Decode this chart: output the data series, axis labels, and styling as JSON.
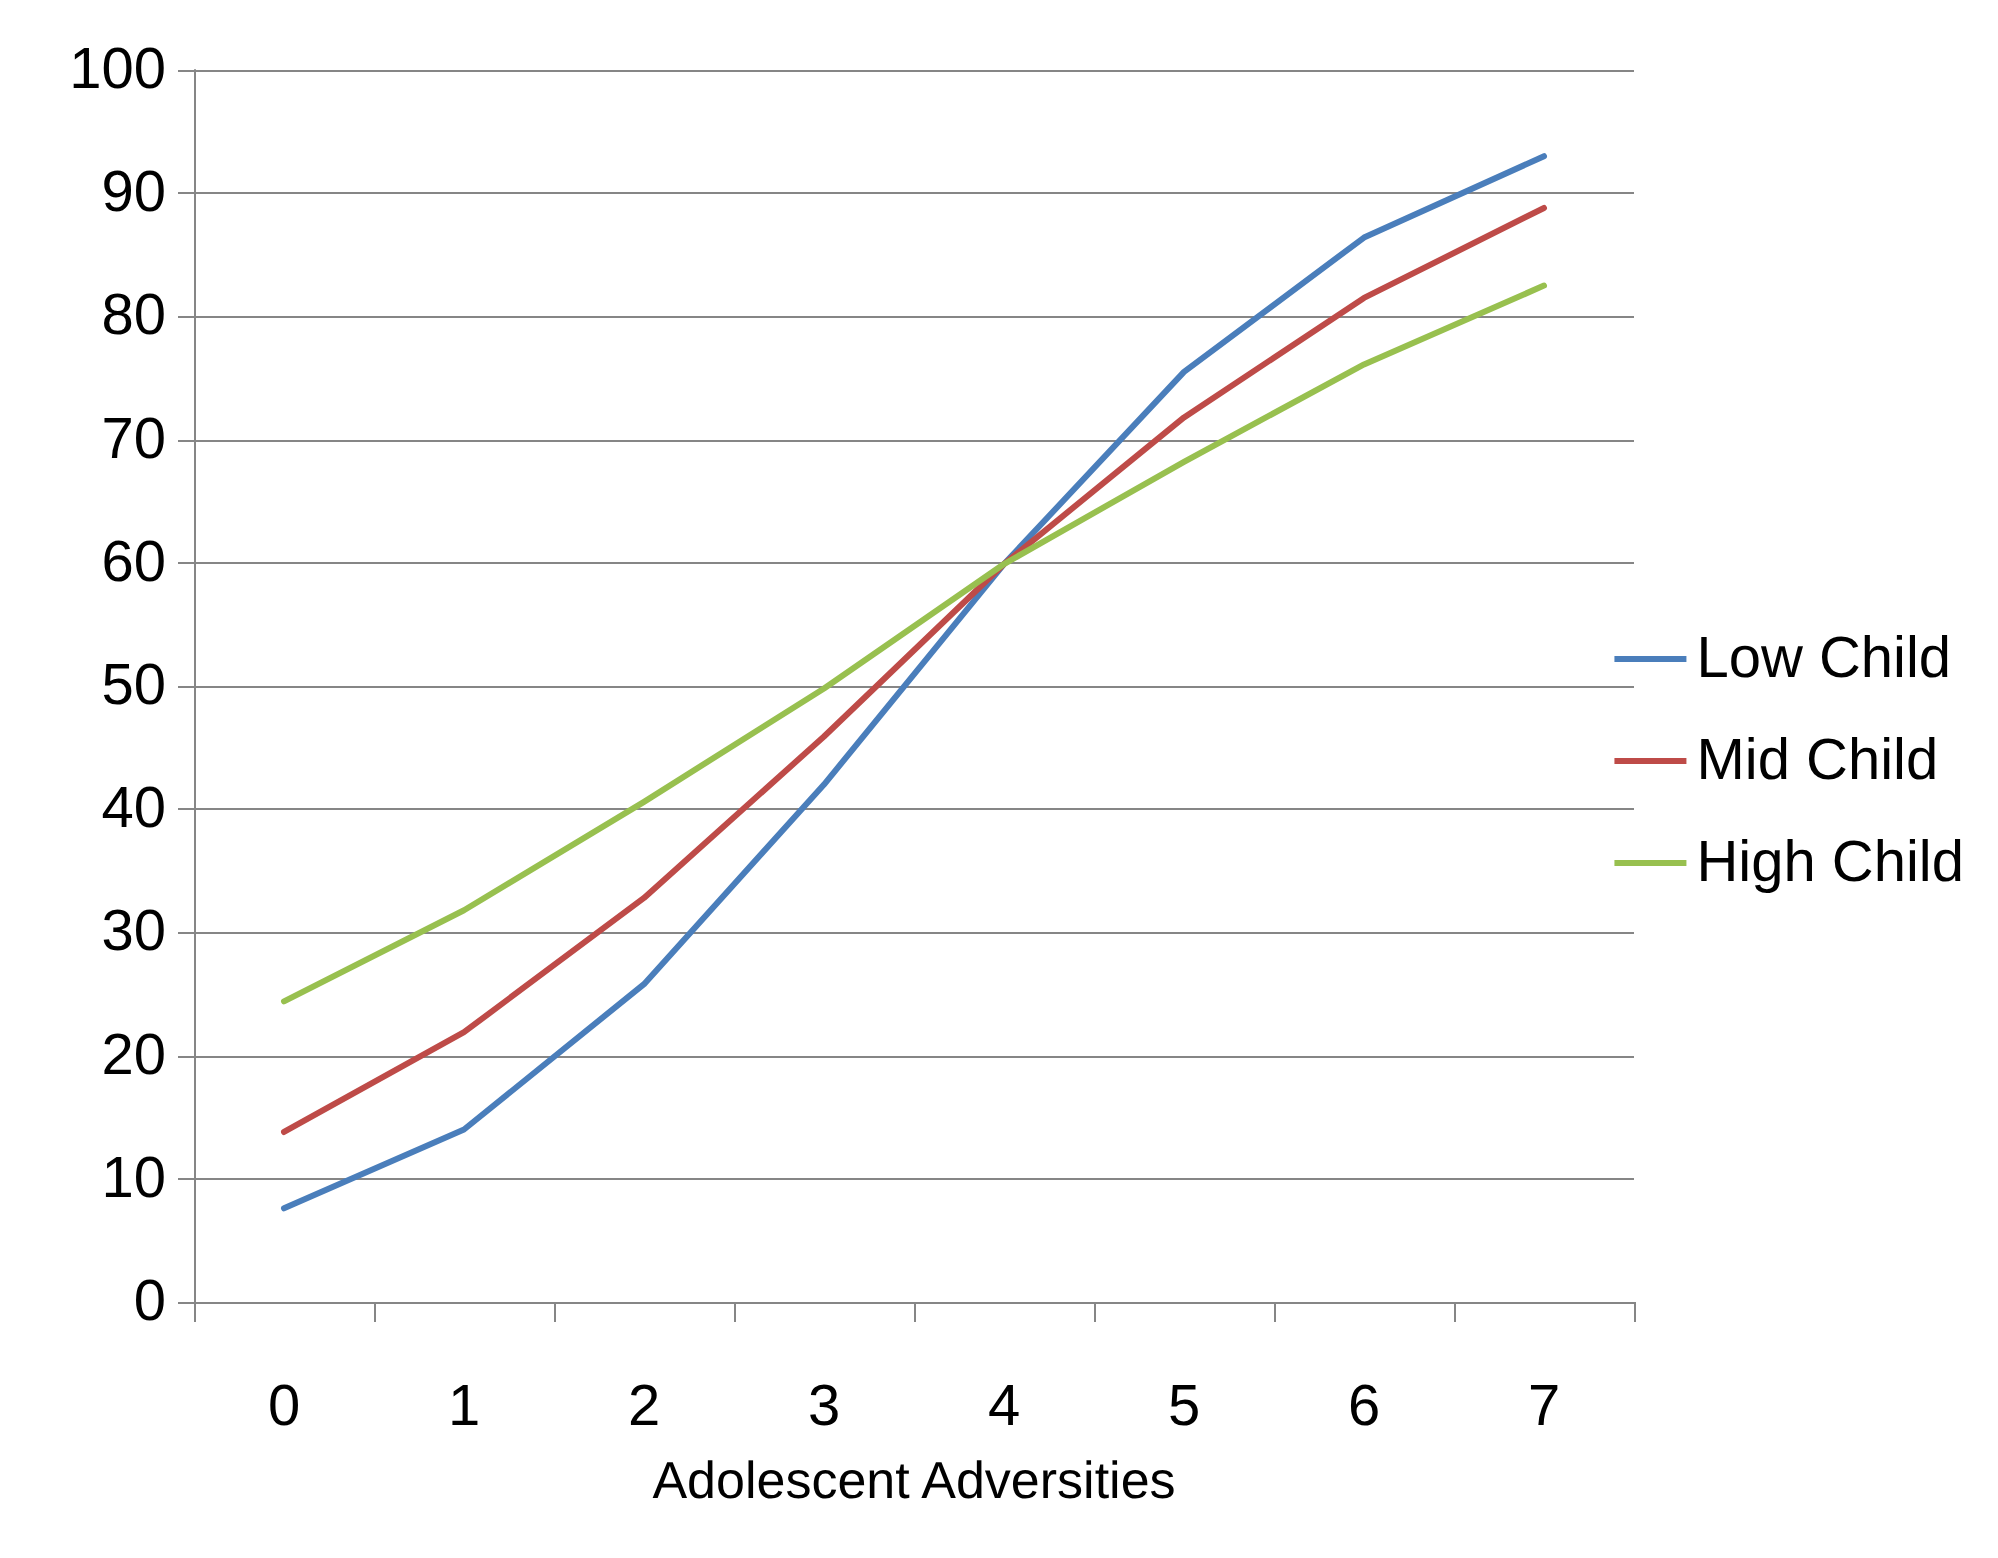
{
  "chart_data": {
    "type": "line",
    "xlabel": "Adolescent Adversities",
    "categories": [
      "0",
      "1",
      "2",
      "3",
      "4",
      "5",
      "6",
      "7"
    ],
    "series": [
      {
        "name": "Low Child",
        "color": "#4a7ebb",
        "values": [
          7.6,
          14,
          25.8,
          42,
          59.9,
          75.5,
          86.4,
          93
        ]
      },
      {
        "name": "Mid Child",
        "color": "#be4b48",
        "values": [
          13.8,
          21.9,
          32.8,
          45.9,
          59.9,
          71.8,
          81.5,
          88.8
        ]
      },
      {
        "name": "High Child",
        "color": "#98c04f",
        "values": [
          24.4,
          31.8,
          40.6,
          49.8,
          59.9,
          68.2,
          76.1,
          82.5
        ]
      }
    ],
    "ylim": [
      0,
      100
    ],
    "yticks": [
      0,
      10,
      20,
      30,
      40,
      50,
      60,
      70,
      80,
      90,
      100
    ],
    "grid": "y",
    "legend": "right",
    "marker": "none",
    "line_style": "solid"
  }
}
